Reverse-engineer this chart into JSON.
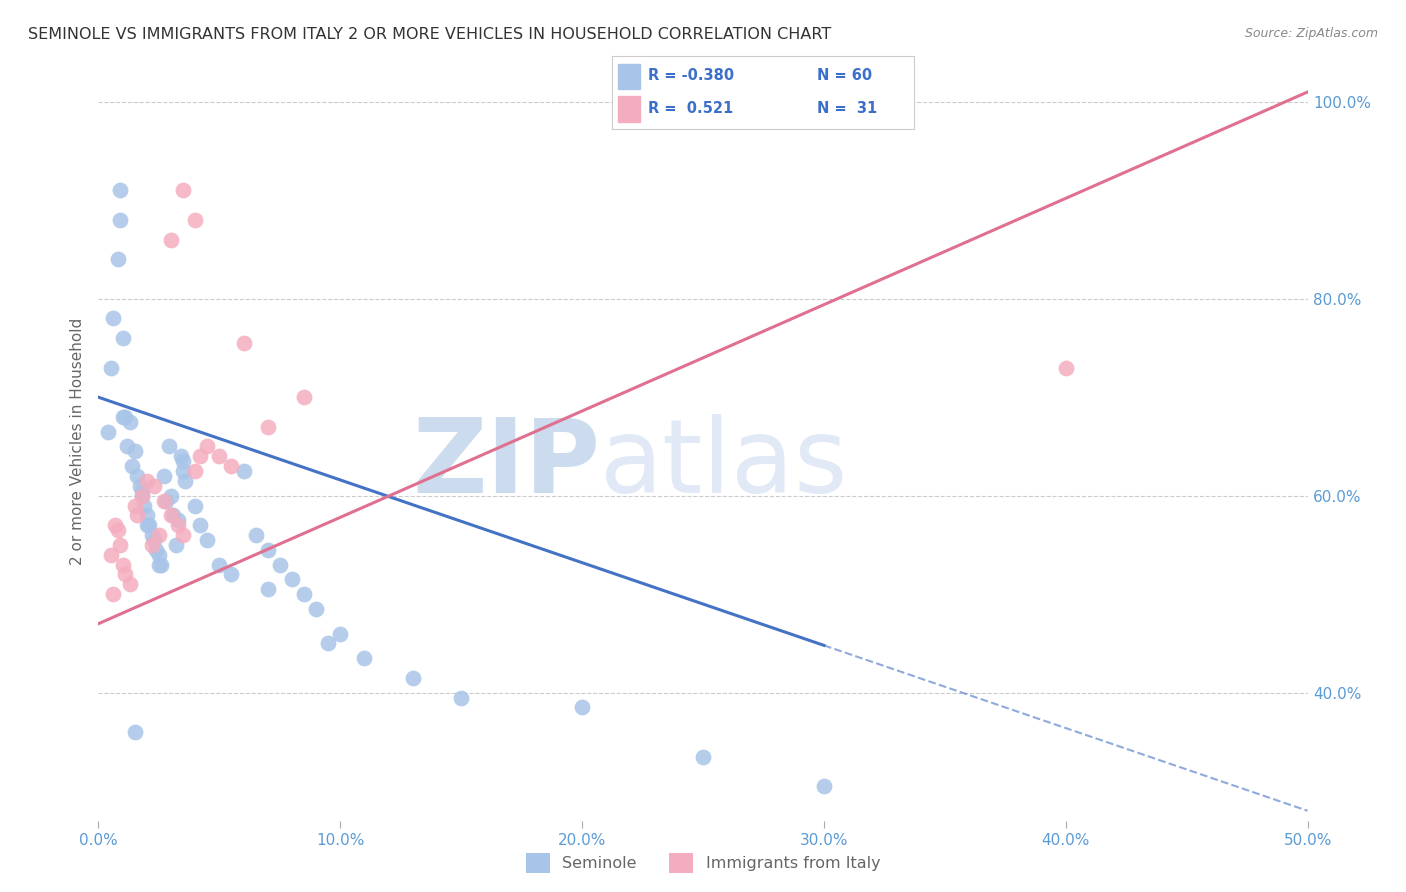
{
  "title": "SEMINOLE VS IMMIGRANTS FROM ITALY 2 OR MORE VEHICLES IN HOUSEHOLD CORRELATION CHART",
  "source": "Source: ZipAtlas.com",
  "ylabel": "2 or more Vehicles in Household",
  "x_min": 0.0,
  "x_max": 50.0,
  "y_min": 27.0,
  "y_max": 104.0,
  "x_ticks": [
    0.0,
    10.0,
    20.0,
    30.0,
    40.0,
    50.0
  ],
  "y_ticks": [
    40.0,
    60.0,
    80.0,
    100.0
  ],
  "blue_color": "#a8c4e8",
  "pink_color": "#f4adbf",
  "blue_line_color": "#4472c4",
  "pink_line_color": "#e07090",
  "label1": "Seminole",
  "label2": "Immigrants from Italy",
  "blue_R": "-0.380",
  "blue_N": "60",
  "pink_R": "0.521",
  "pink_N": "31",
  "blue_points_x": [
    0.4,
    0.5,
    0.6,
    0.8,
    0.9,
    1.0,
    1.1,
    1.2,
    1.3,
    1.4,
    1.5,
    1.6,
    1.7,
    1.8,
    1.9,
    2.0,
    2.1,
    2.2,
    2.3,
    2.4,
    2.5,
    2.6,
    2.7,
    2.9,
    3.0,
    3.1,
    3.2,
    3.3,
    3.4,
    3.5,
    0.9,
    1.0,
    2.0,
    4.5,
    6.0,
    7.0,
    8.0,
    9.5,
    11.0,
    13.0,
    15.0,
    20.0,
    25.0,
    30.0,
    1.8,
    2.5,
    3.5,
    5.0,
    6.5,
    7.5,
    8.5,
    10.0,
    4.0,
    5.5,
    7.0,
    9.0,
    3.6,
    4.2,
    2.8,
    1.5
  ],
  "blue_points_y": [
    66.5,
    73.0,
    78.0,
    84.0,
    91.0,
    76.0,
    68.0,
    65.0,
    67.5,
    63.0,
    64.5,
    62.0,
    61.0,
    60.0,
    59.0,
    58.0,
    57.0,
    56.0,
    55.5,
    54.5,
    54.0,
    53.0,
    62.0,
    65.0,
    60.0,
    58.0,
    55.0,
    57.5,
    64.0,
    63.5,
    88.0,
    68.0,
    57.0,
    55.5,
    62.5,
    54.5,
    51.5,
    45.0,
    43.5,
    41.5,
    39.5,
    38.5,
    33.5,
    30.5,
    60.5,
    53.0,
    62.5,
    53.0,
    56.0,
    53.0,
    50.0,
    46.0,
    59.0,
    52.0,
    50.5,
    48.5,
    61.5,
    57.0,
    59.5,
    36.0
  ],
  "pink_points_x": [
    0.5,
    0.6,
    0.7,
    0.8,
    0.9,
    1.0,
    1.1,
    1.3,
    1.5,
    1.6,
    1.8,
    2.0,
    2.2,
    2.3,
    2.5,
    2.7,
    3.0,
    3.3,
    3.5,
    4.0,
    4.2,
    4.5,
    5.0,
    5.5,
    6.0,
    7.0,
    8.5,
    3.5,
    4.0,
    3.0,
    40.0
  ],
  "pink_points_y": [
    54.0,
    50.0,
    57.0,
    56.5,
    55.0,
    53.0,
    52.0,
    51.0,
    59.0,
    58.0,
    60.0,
    61.5,
    55.0,
    61.0,
    56.0,
    59.5,
    58.0,
    57.0,
    56.0,
    62.5,
    64.0,
    65.0,
    64.0,
    63.0,
    75.5,
    67.0,
    70.0,
    91.0,
    88.0,
    86.0,
    73.0
  ],
  "blue_line_x0": 0.0,
  "blue_line_y0": 70.0,
  "blue_line_x1": 50.0,
  "blue_line_y1": 28.0,
  "blue_solid_end_x": 30.0,
  "pink_line_x0": 0.0,
  "pink_line_y0": 47.0,
  "pink_line_x1": 50.0,
  "pink_line_y1": 101.0,
  "figsize": [
    14.06,
    8.92
  ],
  "dpi": 100
}
